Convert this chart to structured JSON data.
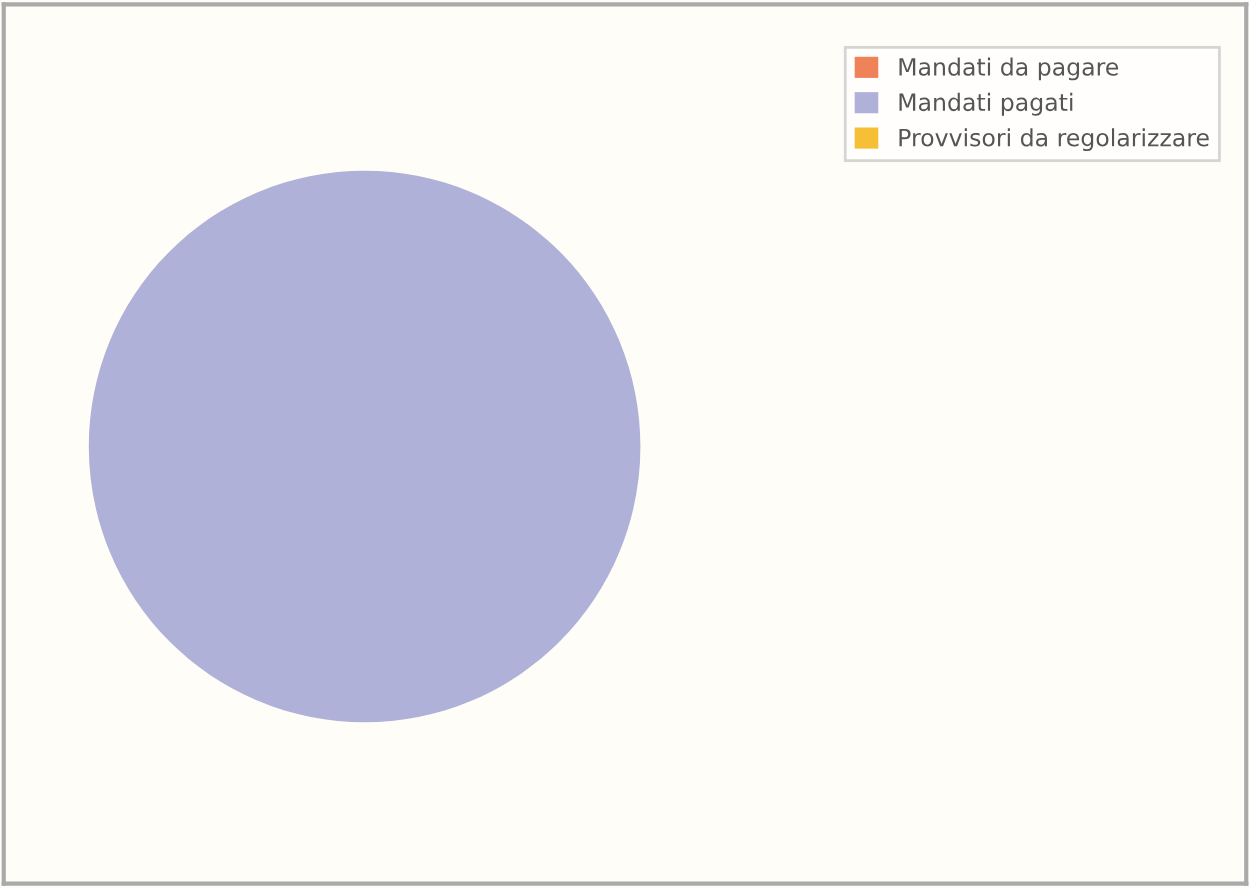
{
  "chart_data": {
    "type": "pie",
    "categories": [
      "Mandati da pagare",
      "Mandati pagati",
      "Provvisori da regolarizzare"
    ],
    "values": [
      0,
      100,
      0
    ],
    "colors": [
      "#f0825a",
      "#b0b1d8",
      "#f5c035"
    ],
    "legend": "top right"
  }
}
